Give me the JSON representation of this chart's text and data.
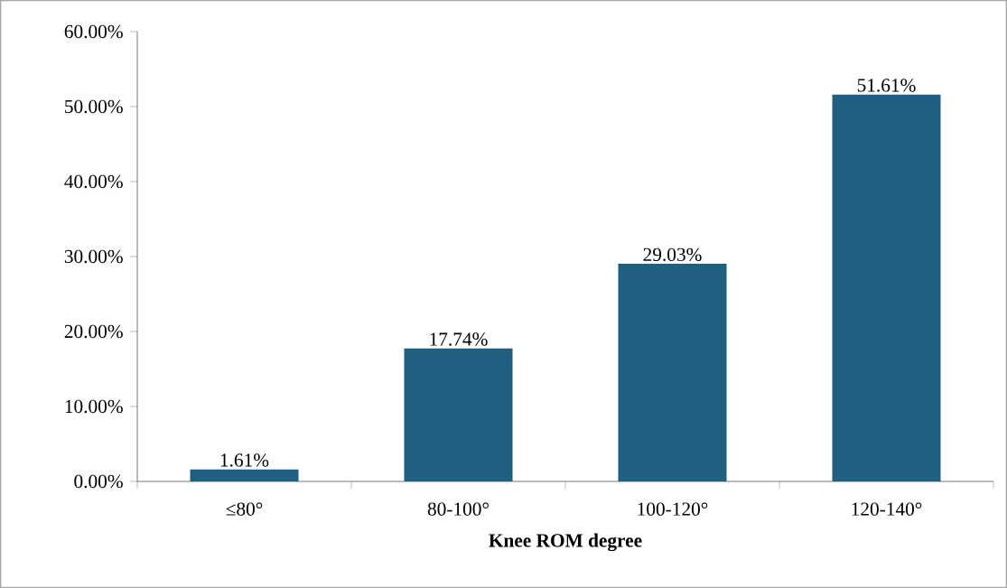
{
  "chart_data": {
    "type": "bar",
    "xlabel": "**Knee ROM degree**",
    "categories": [
      "≤80°",
      "80-100°",
      "100-120°",
      "120-140°"
    ],
    "values": [
      1.61,
      17.74,
      29.03,
      51.61
    ],
    "value_labels": [
      "1.61%",
      "17.74%",
      "29.03%",
      "51.61%"
    ],
    "color": "#1f5f80",
    "ylim": [
      0,
      60
    ],
    "yticks": [
      {
        "value": 0,
        "label": "0.00%"
      },
      {
        "value": 10,
        "label": "10.00%"
      },
      {
        "value": 20,
        "label": "20.00%"
      },
      {
        "value": 30,
        "label": "30.00%"
      },
      {
        "value": 40,
        "label": "40.00%"
      },
      {
        "value": 50,
        "label": "50.00%"
      },
      {
        "value": 60,
        "label": "60.00%"
      }
    ],
    "grid": false
  }
}
